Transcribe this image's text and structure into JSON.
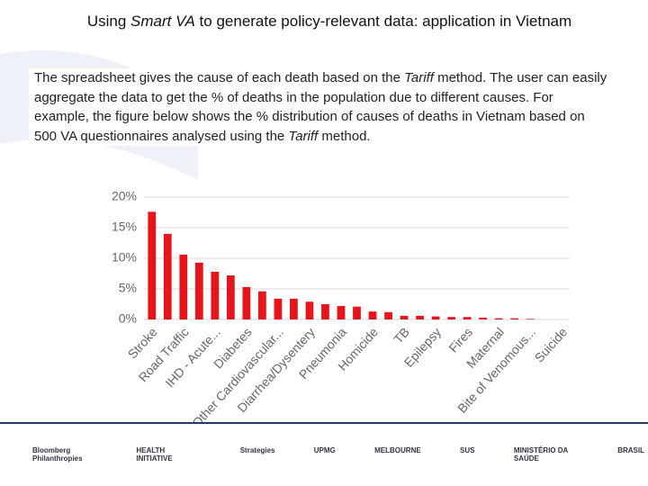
{
  "header": {
    "title": [
      "Using ",
      "Smart VA",
      " to generate policy-relevant data: application in Vietnam"
    ]
  },
  "body": {
    "text": [
      "The spreadsheet gives the cause of each death based on the ",
      "Tariff",
      " method. The user can easily aggregate the data to get the % of deaths in the population due to different causes. For example, the figure below shows  the % distribution of causes of deaths in Vietnam based on 500 VA questionnaires analysed using the ",
      "Tariff",
      " method."
    ]
  },
  "chart_data": {
    "type": "bar",
    "categories": [
      "Stroke",
      null,
      "Road Traffic",
      null,
      "IHD - Acute...",
      null,
      "Diabetes",
      null,
      "Other Cardiovascular...",
      null,
      "Diarrhea/Dysentery",
      null,
      "Pneumonia",
      null,
      "Homicide",
      null,
      "TB",
      null,
      "Epilepsy",
      null,
      "Fires",
      null,
      "Maternal",
      null,
      "Bite of Venomous...",
      null,
      "Suicide"
    ],
    "values": [
      17.6,
      14,
      10.6,
      9.3,
      7.8,
      7.2,
      5.3,
      4.6,
      3.4,
      3.4,
      2.9,
      2.5,
      2.2,
      2.1,
      1.3,
      1.2,
      0.6,
      0.6,
      0.5,
      0.4,
      0.4,
      0.3,
      0.2,
      0.2,
      0.1,
      0,
      0
    ],
    "color": "#e8141b",
    "ylim": [
      0,
      20
    ],
    "yticks": [
      {
        "value": 0,
        "label": "0%"
      },
      {
        "value": 5,
        "label": "5%"
      },
      {
        "value": 10,
        "label": "10%"
      },
      {
        "value": 15,
        "label": "15%"
      },
      {
        "value": 20,
        "label": "20%"
      }
    ],
    "grid": true
  },
  "footer": {
    "logos": [
      "Bloomberg Philanthropies",
      "HEALTH INITIATIVE",
      "Strategies",
      "UPMG",
      "MELBOURNE",
      "SUS",
      "MINISTÉRIO DA SAÚDE",
      "BRASIL"
    ]
  }
}
